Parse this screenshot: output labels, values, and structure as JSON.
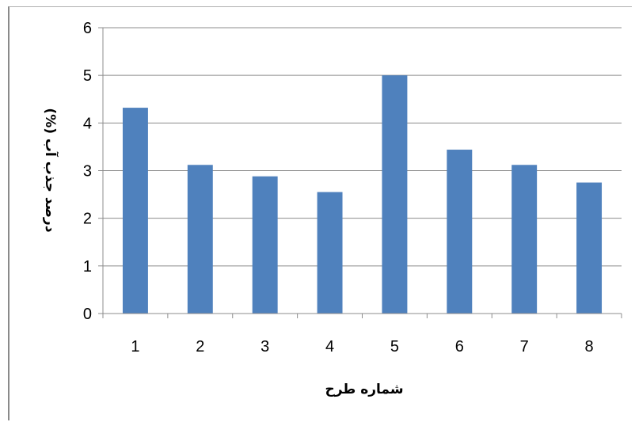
{
  "chart_data": {
    "type": "bar",
    "categories": [
      "1",
      "2",
      "3",
      "4",
      "5",
      "6",
      "7",
      "8"
    ],
    "values": [
      4.32,
      3.12,
      2.88,
      2.55,
      5.0,
      3.44,
      3.12,
      2.75
    ],
    "title": "",
    "xlabel": "شماره طرح",
    "ylabel": "درصد جذب آب (%)",
    "ylim": [
      0,
      6
    ],
    "yticks": [
      "0",
      "1",
      "2",
      "3",
      "4",
      "5",
      "6"
    ],
    "grid": true,
    "legend": "none",
    "colors": {
      "bar": "#4f81bd",
      "grid": "#8c8c8c",
      "axis": "#8c8c8c"
    }
  }
}
